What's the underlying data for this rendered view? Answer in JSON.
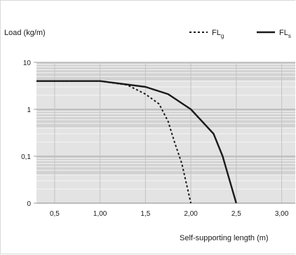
{
  "chart_data": {
    "type": "line",
    "title": "",
    "ylabel": "Load (kg/m)",
    "xlabel": "Self-supporting length (m)",
    "y_scale": "log",
    "ylim": [
      0.01,
      10
    ],
    "xlim": [
      0.3,
      3.15
    ],
    "grid": true,
    "legend_position": "top-right",
    "y_ticks": [
      {
        "value": 10,
        "label": "10"
      },
      {
        "value": 1,
        "label": "1"
      },
      {
        "value": 0.1,
        "label": "0,1"
      },
      {
        "value": 0.01,
        "label": "0"
      }
    ],
    "x_ticks": [
      {
        "value": 0.5,
        "label": "0,5"
      },
      {
        "value": 1.0,
        "label": "1,00"
      },
      {
        "value": 1.5,
        "label": "1,5"
      },
      {
        "value": 2.0,
        "label": "2,00"
      },
      {
        "value": 2.5,
        "label": "2,5"
      },
      {
        "value": 3.0,
        "label": "3,00"
      }
    ],
    "series": [
      {
        "name": "FL",
        "name_sub": "g",
        "style": "dotted",
        "color": "#1a1a1a",
        "points": [
          [
            0.3,
            4.0
          ],
          [
            1.0,
            4.0
          ],
          [
            1.3,
            3.3
          ],
          [
            1.5,
            2.1
          ],
          [
            1.65,
            1.3
          ],
          [
            1.75,
            0.55
          ],
          [
            1.82,
            0.2
          ],
          [
            1.9,
            0.07
          ],
          [
            2.0,
            0.01
          ]
        ]
      },
      {
        "name": "FL",
        "name_sub": "s",
        "style": "solid",
        "color": "#1a1a1a",
        "points": [
          [
            0.3,
            4.0
          ],
          [
            1.0,
            4.0
          ],
          [
            1.5,
            3.0
          ],
          [
            1.75,
            2.1
          ],
          [
            2.0,
            1.0
          ],
          [
            2.25,
            0.3
          ],
          [
            2.35,
            0.1
          ],
          [
            2.5,
            0.01
          ]
        ]
      }
    ]
  }
}
